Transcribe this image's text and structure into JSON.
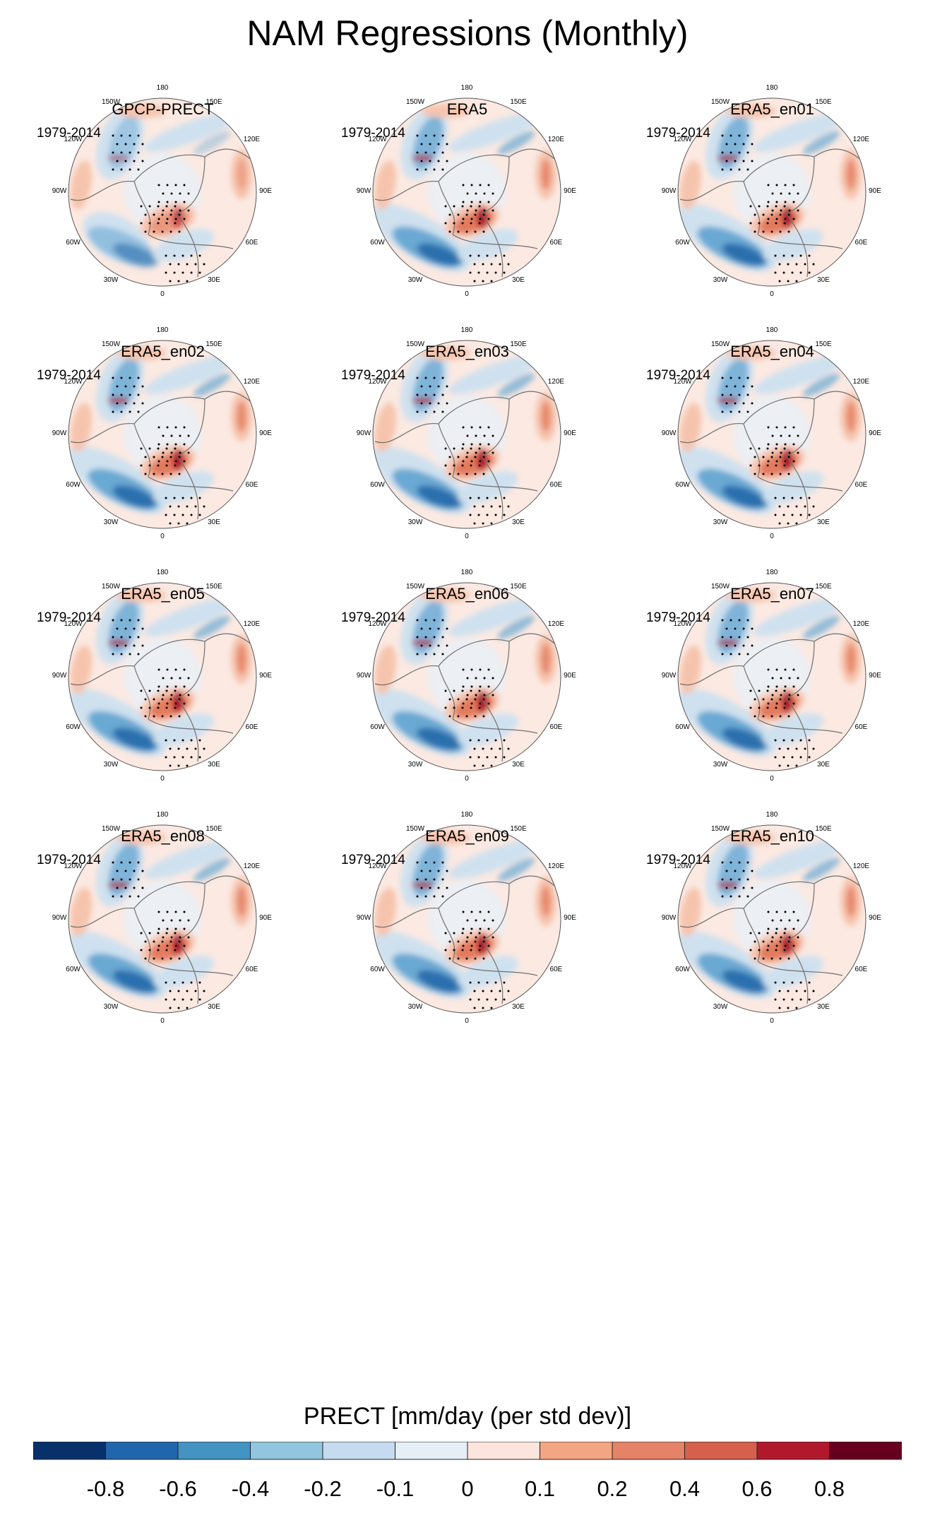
{
  "title": "NAM Regressions (Monthly)",
  "period": "1979-2014",
  "panels": [
    {
      "title": "GPCP-PRECT",
      "period": "1979-2014"
    },
    {
      "title": "ERA5",
      "period": "1979-2014"
    },
    {
      "title": "ERA5_en01",
      "period": "1979-2014"
    },
    {
      "title": "ERA5_en02",
      "period": "1979-2014"
    },
    {
      "title": "ERA5_en03",
      "period": "1979-2014"
    },
    {
      "title": "ERA5_en04",
      "period": "1979-2014"
    },
    {
      "title": "ERA5_en05",
      "period": "1979-2014"
    },
    {
      "title": "ERA5_en06",
      "period": "1979-2014"
    },
    {
      "title": "ERA5_en07",
      "period": "1979-2014"
    },
    {
      "title": "ERA5_en08",
      "period": "1979-2014"
    },
    {
      "title": "ERA5_en09",
      "period": "1979-2014"
    },
    {
      "title": "ERA5_en10",
      "period": "1979-2014"
    }
  ],
  "lon_labels": [
    "180",
    "150E",
    "120E",
    "90E",
    "60E",
    "30E",
    "0",
    "30W",
    "60W",
    "90W",
    "120W",
    "150W"
  ],
  "colorbar": {
    "title": "PRECT [mm/day (per std dev)]",
    "tick_labels": [
      "-0.8",
      "-0.6",
      "-0.4",
      "-0.2",
      "-0.1",
      "0",
      "0.1",
      "0.2",
      "0.4",
      "0.6",
      "0.8"
    ],
    "colors": [
      "#08306b",
      "#2166ac",
      "#4393c3",
      "#92c5de",
      "#c6dbef",
      "#e6eef6",
      "#fbe5dc",
      "#f4a582",
      "#e58267",
      "#d6604d",
      "#b2182b",
      "#67001f"
    ]
  },
  "colors": {
    "ocean_base": "#fbe9e2",
    "neg_light": "#cfe1ef",
    "neg_mid": "#6aa9d3",
    "neg_dark": "#2c6fae",
    "pos_light": "#f6c4ad",
    "pos_mid": "#e37a5d",
    "pos_dark": "#b2182b",
    "coast": "#707070"
  }
}
